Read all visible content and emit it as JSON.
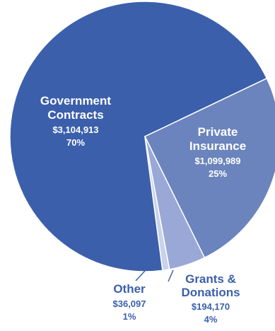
{
  "chart_data": {
    "type": "pie",
    "title": "",
    "slices": [
      {
        "name_lines": [
          "Government",
          "Contracts"
        ],
        "amount": "$3,104,913",
        "percent": "70%",
        "value": 3104913,
        "color": "#3b5fab",
        "label_color": "#ffffff"
      },
      {
        "name_lines": [
          "Private",
          "Insurance"
        ],
        "amount": "$1,099,989",
        "percent": "25%",
        "value": 1099989,
        "color": "#6b84bd",
        "label_color": "#ffffff"
      },
      {
        "name_lines": [
          "Grants &",
          "Donations"
        ],
        "amount": "$194,170",
        "percent": "4%",
        "value": 194170,
        "color": "#99a8d6",
        "label_color": "#3b5fab"
      },
      {
        "name_lines": [
          "Other"
        ],
        "amount": "$36,097",
        "percent": "1%",
        "value": 36097,
        "color": "#c9d2eb",
        "label_color": "#3b5fab"
      }
    ]
  }
}
